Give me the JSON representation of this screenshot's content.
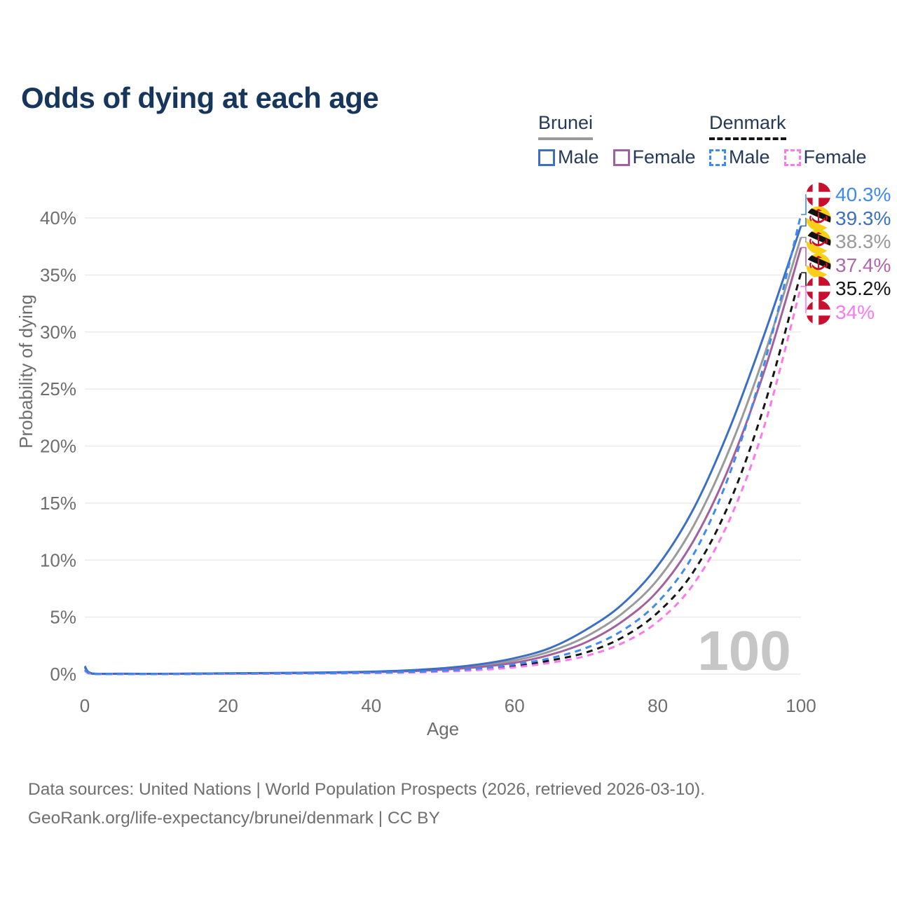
{
  "title": "Odds of dying at each age",
  "legend": {
    "groups": [
      {
        "name": "Brunei",
        "line_style": "solid",
        "line_color": "#9a9a9a",
        "items": [
          {
            "label": "Male",
            "color": "#3c6fc4",
            "style": "solid"
          },
          {
            "label": "Female",
            "color": "#a2609f",
            "style": "solid"
          }
        ]
      },
      {
        "name": "Denmark",
        "line_style": "dashed",
        "line_color": "#161616",
        "items": [
          {
            "label": "Male",
            "color": "#3f8af0",
            "style": "dashed"
          },
          {
            "label": "Female",
            "color": "#fb78ee",
            "style": "dashed"
          }
        ]
      }
    ]
  },
  "chart_data": {
    "type": "line",
    "title": "Odds of dying at each age",
    "xlabel": "Age",
    "ylabel": "Probability of dying",
    "xlim": [
      0,
      100
    ],
    "ylim_pct": [
      0,
      40
    ],
    "grid": "horizontal",
    "xtick_values": [
      0,
      20,
      40,
      60,
      80,
      100
    ],
    "xtick_labels": [
      "0",
      "20",
      "40",
      "60",
      "80",
      "100"
    ],
    "ytick_values": [
      0,
      5,
      10,
      15,
      20,
      25,
      30,
      35,
      40
    ],
    "ytick_labels": [
      "0%",
      "5%",
      "10%",
      "15%",
      "20%",
      "25%",
      "30%",
      "35%",
      "40%"
    ],
    "x": [
      0,
      1,
      5,
      10,
      15,
      20,
      25,
      30,
      35,
      40,
      45,
      50,
      55,
      60,
      65,
      70,
      75,
      80,
      85,
      90,
      95,
      100
    ],
    "series": [
      {
        "name": "Brunei Male",
        "country": "Brunei",
        "sex": "Male",
        "color": "#3c6fc4",
        "dash": "solid",
        "values": [
          0.7,
          0.06,
          0.04,
          0.03,
          0.05,
          0.08,
          0.1,
          0.12,
          0.16,
          0.22,
          0.33,
          0.52,
          0.85,
          1.4,
          2.3,
          3.9,
          6.1,
          9.5,
          14.5,
          21.5,
          30.0,
          39.3
        ]
      },
      {
        "name": "Brunei Both sexes",
        "country": "Brunei",
        "sex": "Both",
        "color": "#9a9a9a",
        "dash": "solid",
        "values": [
          0.65,
          0.05,
          0.035,
          0.028,
          0.045,
          0.07,
          0.09,
          0.11,
          0.14,
          0.19,
          0.29,
          0.45,
          0.73,
          1.2,
          2.0,
          3.3,
          5.3,
          8.3,
          13.0,
          19.7,
          28.2,
          38.3
        ]
      },
      {
        "name": "Brunei Female",
        "country": "Brunei",
        "sex": "Female",
        "color": "#a2609f",
        "dash": "solid",
        "values": [
          0.6,
          0.045,
          0.03,
          0.025,
          0.04,
          0.05,
          0.07,
          0.09,
          0.12,
          0.17,
          0.25,
          0.39,
          0.62,
          1.0,
          1.7,
          2.8,
          4.6,
          7.3,
          11.7,
          18.2,
          26.8,
          37.4
        ]
      },
      {
        "name": "Denmark Male",
        "country": "Denmark",
        "sex": "Male",
        "color": "#3f8af0",
        "dash": "dashed",
        "values": [
          0.4,
          0.03,
          0.01,
          0.01,
          0.02,
          0.05,
          0.06,
          0.07,
          0.09,
          0.13,
          0.19,
          0.3,
          0.5,
          0.85,
          1.4,
          2.3,
          3.8,
          6.3,
          10.5,
          17.5,
          27.5,
          40.3
        ]
      },
      {
        "name": "Denmark Both sexes",
        "country": "Denmark",
        "sex": "Both",
        "color": "#161616",
        "dash": "dashed",
        "values": [
          0.35,
          0.025,
          0.008,
          0.009,
          0.015,
          0.04,
          0.05,
          0.06,
          0.08,
          0.11,
          0.16,
          0.26,
          0.42,
          0.7,
          1.2,
          1.9,
          3.2,
          5.4,
          9.0,
          15.0,
          23.8,
          35.2
        ]
      },
      {
        "name": "Denmark Female",
        "country": "Denmark",
        "sex": "Female",
        "color": "#fb78ee",
        "dash": "dashed",
        "values": [
          0.3,
          0.02,
          0.007,
          0.008,
          0.012,
          0.03,
          0.04,
          0.05,
          0.07,
          0.1,
          0.14,
          0.22,
          0.36,
          0.6,
          1.0,
          1.6,
          2.7,
          4.6,
          7.9,
          13.5,
          22.0,
          34.0
        ]
      }
    ],
    "end_labels": [
      {
        "label": "40.3%",
        "value": 40.3,
        "series": "Denmark Male",
        "flag": "denmark",
        "color": "#3f8af0"
      },
      {
        "label": "39.3%",
        "value": 39.3,
        "series": "Brunei Male",
        "flag": "brunei",
        "color": "#3c6fc4"
      },
      {
        "label": "38.3%",
        "value": 38.3,
        "series": "Brunei Both sexes",
        "flag": "brunei",
        "color": "#9a9a9a"
      },
      {
        "label": "37.4%",
        "value": 37.4,
        "series": "Brunei Female",
        "flag": "brunei",
        "color": "#b067ab"
      },
      {
        "label": "35.2%",
        "value": 35.2,
        "series": "Denmark Both sexes",
        "flag": "denmark",
        "color": "#161616"
      },
      {
        "label": "34%",
        "value": 34.0,
        "series": "Denmark Female",
        "flag": "denmark",
        "color": "#fb78ee"
      }
    ],
    "watermark": "100",
    "legend_position": "top-right"
  },
  "colors": {
    "title": "#17365c",
    "axis_text": "#6e6e6e",
    "gridline": "#ebebeb",
    "watermark": "#c6c6c6",
    "footer_text": "#6f6f6f",
    "denmark_flag_red": "#c8102e",
    "brunei_flag_yellow": "#f7d017",
    "brunei_emblem_red": "#ce1126"
  },
  "footer": {
    "line1": "Data sources: United Nations | World Population Prospects (2026, retrieved 2026-03-10).",
    "line2": "GeoRank.org/life-expectancy/brunei/denmark | CC BY"
  }
}
